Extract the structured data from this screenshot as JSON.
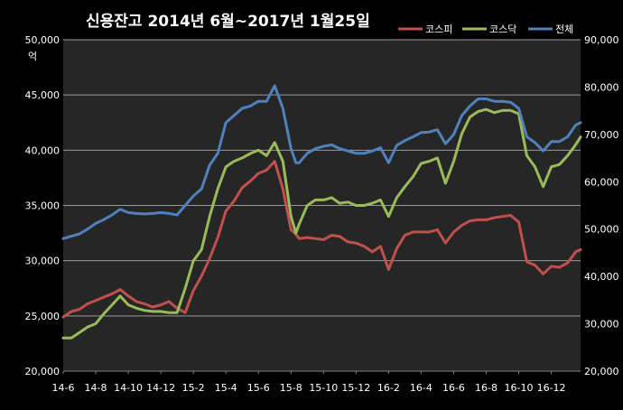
{
  "chart_data": {
    "type": "line",
    "title": "신용잔고 2014년 6월~2017년 1월25일",
    "left_axis": {
      "unit_label": "억",
      "range": [
        20000,
        50000
      ],
      "ticks": [
        20000,
        25000,
        30000,
        35000,
        40000,
        45000,
        50000
      ],
      "tick_labels": [
        "20,000",
        "25,000",
        "30,000",
        "35,000",
        "40,000",
        "45,000",
        "50,000"
      ]
    },
    "right_axis": {
      "range": [
        20000,
        90000
      ],
      "ticks": [
        20000,
        30000,
        40000,
        50000,
        60000,
        70000,
        80000,
        90000
      ],
      "tick_labels": [
        "20,000",
        "30,000",
        "40,000",
        "50,000",
        "60,000",
        "70,000",
        "80,000",
        "90,000"
      ]
    },
    "x_axis": {
      "tick_labels": [
        "14-6",
        "14-8",
        "14-10",
        "14-12",
        "15-2",
        "15-4",
        "15-6",
        "15-8",
        "15-10",
        "15-12",
        "16-2",
        "16-4",
        "16-6",
        "16-8",
        "16-10",
        "16-12"
      ]
    },
    "x_index_range": [
      0,
      31.8
    ],
    "grid": true,
    "legend_placement": "top-right",
    "series": [
      {
        "name": "코스피",
        "axis": "left",
        "color": "#c0504d",
        "x": [
          0,
          0.5,
          1,
          1.5,
          2,
          2.5,
          3,
          3.5,
          4,
          4.5,
          5,
          5.5,
          6,
          6.5,
          7,
          7.5,
          8,
          8.5,
          9,
          9.5,
          10,
          10.5,
          11,
          11.5,
          12,
          12.5,
          13,
          13.5,
          14,
          14.3,
          14.5,
          15,
          15.5,
          16,
          16.5,
          17,
          17.5,
          18,
          18.5,
          19,
          19.5,
          20,
          20.5,
          21,
          21.5,
          22,
          22.5,
          23,
          23.5,
          24,
          24.5,
          25,
          25.5,
          26,
          26.5,
          27,
          27.5,
          28,
          28.5,
          29,
          29.5,
          30,
          30.5,
          31,
          31.5,
          31.8
        ],
        "y": [
          24900,
          25400,
          25600,
          26100,
          26400,
          26700,
          27000,
          27400,
          26800,
          26300,
          26100,
          25800,
          26000,
          26300,
          25700,
          25300,
          27300,
          28600,
          30200,
          32100,
          34500,
          35400,
          36600,
          37200,
          37900,
          38200,
          39000,
          36500,
          32800,
          32400,
          32000,
          32100,
          32000,
          31900,
          32300,
          32200,
          31700,
          31600,
          31300,
          30800,
          31300,
          29200,
          31100,
          32300,
          32600,
          32600,
          32600,
          32800,
          31600,
          32600,
          33200,
          33600,
          33700,
          33700,
          33900,
          34000,
          34100,
          33500,
          29900,
          29600,
          28800,
          29500,
          29400,
          29800,
          30800,
          31000
        ]
      },
      {
        "name": "코스닥",
        "axis": "left",
        "color": "#9bbb59",
        "x": [
          0,
          0.5,
          1,
          1.5,
          2,
          2.5,
          3,
          3.5,
          4,
          4.5,
          5,
          5.5,
          6,
          6.5,
          7,
          7.5,
          8,
          8.5,
          9,
          9.5,
          10,
          10.5,
          11,
          11.5,
          12,
          12.5,
          13,
          13.5,
          14,
          14.3,
          14.5,
          15,
          15.5,
          16,
          16.5,
          17,
          17.5,
          18,
          18.5,
          19,
          19.5,
          20,
          20.5,
          21,
          21.5,
          22,
          22.5,
          23,
          23.5,
          24,
          24.5,
          25,
          25.5,
          26,
          26.5,
          27,
          27.5,
          28,
          28.5,
          29,
          29.5,
          30,
          30.5,
          31,
          31.5,
          31.8
        ],
        "y": [
          23000,
          23000,
          23500,
          24000,
          24300,
          25200,
          26000,
          26800,
          26000,
          25700,
          25500,
          25400,
          25400,
          25300,
          25300,
          27500,
          30000,
          31000,
          34000,
          36500,
          38500,
          39000,
          39300,
          39700,
          40000,
          39500,
          40700,
          39000,
          34000,
          32500,
          33300,
          35000,
          35500,
          35500,
          35700,
          35200,
          35300,
          35000,
          35000,
          35200,
          35500,
          34000,
          35700,
          36700,
          37600,
          38800,
          39000,
          39300,
          37000,
          39000,
          41500,
          43000,
          43500,
          43700,
          43400,
          43600,
          43600,
          43300,
          39500,
          38500,
          36700,
          38500,
          38700,
          39500,
          40500,
          41200
        ]
      },
      {
        "name": "전체",
        "axis": "right",
        "color": "#4f81bd",
        "x": [
          0,
          0.5,
          1,
          1.5,
          2,
          2.5,
          3,
          3.5,
          4,
          4.5,
          5,
          5.5,
          6,
          6.5,
          7,
          7.5,
          8,
          8.5,
          9,
          9.5,
          10,
          10.5,
          11,
          11.5,
          12,
          12.5,
          13,
          13.5,
          14,
          14.3,
          14.5,
          15,
          15.5,
          16,
          16.5,
          17,
          17.5,
          18,
          18.5,
          19,
          19.5,
          20,
          20.5,
          21,
          21.5,
          22,
          22.5,
          23,
          23.5,
          24,
          24.5,
          25,
          25.5,
          26,
          26.5,
          27,
          27.5,
          28,
          28.5,
          29,
          29.5,
          30,
          30.5,
          31,
          31.5,
          31.8
        ],
        "y": [
          48000,
          48500,
          49000,
          50000,
          51200,
          52000,
          53000,
          54200,
          53500,
          53300,
          53200,
          53300,
          53500,
          53300,
          53000,
          55000,
          57000,
          58500,
          63500,
          66000,
          72500,
          74000,
          75500,
          76000,
          77000,
          77000,
          80300,
          75500,
          67000,
          64000,
          64000,
          66000,
          67000,
          67500,
          67800,
          67000,
          66500,
          66000,
          66000,
          66500,
          67200,
          64000,
          67700,
          68700,
          69500,
          70400,
          70500,
          71000,
          68000,
          70000,
          74000,
          76000,
          77500,
          77500,
          77000,
          77000,
          76800,
          75500,
          69500,
          68300,
          66500,
          68500,
          68500,
          69500,
          72000,
          72500
        ]
      }
    ]
  }
}
